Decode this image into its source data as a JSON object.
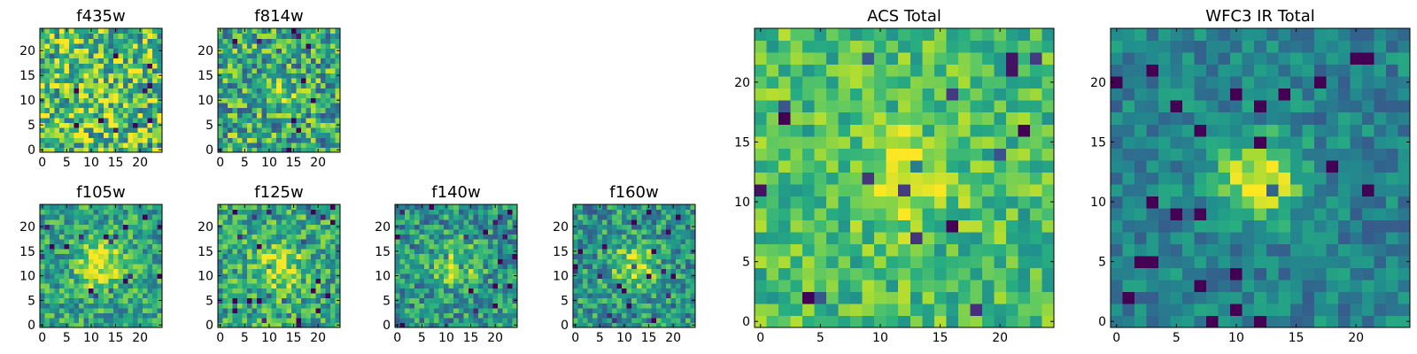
{
  "chart_data": [
    {
      "type": "heatmap",
      "title": "f435w",
      "xticks": [
        "0",
        "5",
        "10",
        "15",
        "20"
      ],
      "yticks": [
        "0",
        "5",
        "10",
        "15",
        "20"
      ],
      "xlim": [
        -0.5,
        24.5
      ],
      "ylim": [
        -0.5,
        24.5
      ],
      "grid_size": [
        25,
        25
      ],
      "colormap": "viridis",
      "centroid_peak": {
        "x": 12,
        "y": 12,
        "amplitude": 0.0,
        "width": 3
      },
      "pixel_noise": 0.36,
      "background_level": 0.72
    },
    {
      "type": "heatmap",
      "title": "f814w",
      "xticks": [
        "0",
        "5",
        "10",
        "15",
        "20"
      ],
      "yticks": [
        "0",
        "5",
        "10",
        "15",
        "20"
      ],
      "xlim": [
        -0.5,
        24.5
      ],
      "ylim": [
        -0.5,
        24.5
      ],
      "grid_size": [
        25,
        25
      ],
      "colormap": "viridis",
      "centroid_peak": {
        "x": 12,
        "y": 12,
        "amplitude": 0.32,
        "width": 2.2
      },
      "pixel_noise": 0.34,
      "background_level": 0.6
    },
    {
      "type": "heatmap",
      "title": "f105w",
      "xticks": [
        "0",
        "5",
        "10",
        "15",
        "20"
      ],
      "yticks": [
        "0",
        "5",
        "10",
        "15",
        "20"
      ],
      "xlim": [
        -0.5,
        24.5
      ],
      "ylim": [
        -0.5,
        24.5
      ],
      "grid_size": [
        25,
        25
      ],
      "colormap": "viridis",
      "centroid_peak": {
        "x": 12,
        "y": 12,
        "amplitude": 0.38,
        "width": 3.5
      },
      "pixel_noise": 0.24,
      "background_level": 0.58
    },
    {
      "type": "heatmap",
      "title": "f125w",
      "xticks": [
        "0",
        "5",
        "10",
        "15",
        "20"
      ],
      "yticks": [
        "0",
        "5",
        "10",
        "15",
        "20"
      ],
      "xlim": [
        -0.5,
        24.5
      ],
      "ylim": [
        -0.5,
        24.5
      ],
      "grid_size": [
        25,
        25
      ],
      "colormap": "viridis",
      "centroid_peak": {
        "x": 12,
        "y": 12,
        "amplitude": 0.32,
        "width": 3.5
      },
      "pixel_noise": 0.26,
      "background_level": 0.6
    },
    {
      "type": "heatmap",
      "title": "f140w",
      "xticks": [
        "0",
        "5",
        "10",
        "15",
        "20"
      ],
      "yticks": [
        "0",
        "5",
        "10",
        "15",
        "20"
      ],
      "xlim": [
        -0.5,
        24.5
      ],
      "ylim": [
        -0.5,
        24.5
      ],
      "grid_size": [
        25,
        25
      ],
      "colormap": "viridis",
      "centroid_peak": {
        "x": 12,
        "y": 12,
        "amplitude": 0.34,
        "width": 3.2
      },
      "pixel_noise": 0.26,
      "background_level": 0.52
    },
    {
      "type": "heatmap",
      "title": "f160w",
      "xticks": [
        "0",
        "5",
        "10",
        "15",
        "20"
      ],
      "yticks": [
        "0",
        "5",
        "10",
        "15",
        "20"
      ],
      "xlim": [
        -0.5,
        24.5
      ],
      "ylim": [
        -0.5,
        24.5
      ],
      "grid_size": [
        25,
        25
      ],
      "colormap": "viridis",
      "centroid_peak": {
        "x": 12,
        "y": 12,
        "amplitude": 0.42,
        "width": 3
      },
      "pixel_noise": 0.26,
      "background_level": 0.52
    },
    {
      "type": "heatmap",
      "title": "ACS Total",
      "xticks": [
        "0",
        "5",
        "10",
        "15",
        "20"
      ],
      "yticks": [
        "0",
        "5",
        "10",
        "15",
        "20"
      ],
      "xlim": [
        -0.5,
        24.5
      ],
      "ylim": [
        -0.5,
        24.5
      ],
      "grid_size": [
        25,
        25
      ],
      "colormap": "viridis",
      "centroid_peak": {
        "x": 12,
        "y": 12,
        "amplitude": 0.3,
        "width": 2.6
      },
      "pixel_noise": 0.2,
      "background_level": 0.7
    },
    {
      "type": "heatmap",
      "title": "WFC3 IR Total",
      "xticks": [
        "0",
        "5",
        "10",
        "15",
        "20"
      ],
      "yticks": [
        "0",
        "5",
        "10",
        "15",
        "20"
      ],
      "xlim": [
        -0.5,
        24.5
      ],
      "ylim": [
        -0.5,
        24.5
      ],
      "grid_size": [
        25,
        25
      ],
      "colormap": "viridis",
      "centroid_peak": {
        "x": 12,
        "y": 12,
        "amplitude": 0.55,
        "width": 2.4
      },
      "pixel_noise": 0.16,
      "background_level": 0.45
    }
  ]
}
